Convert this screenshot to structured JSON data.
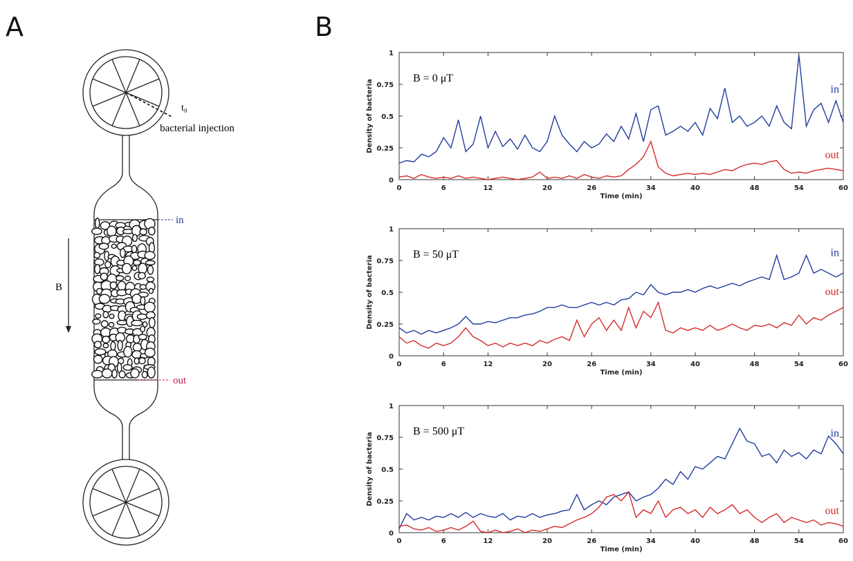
{
  "panels": [
    "A",
    "B"
  ],
  "diagram": {
    "injection_time": "t₀",
    "injection_label": "bacterial injection",
    "inlet_label": "in",
    "outlet_label": "out",
    "field_label": "B"
  },
  "chart_data": [
    {
      "type": "line",
      "annotation": "B = 0 μT",
      "xlabel": "Time (min)",
      "ylabel": "Density of bacteria",
      "xlim": [
        0,
        60
      ],
      "xticks": [
        0,
        6,
        12,
        20,
        26,
        34,
        40,
        48,
        54,
        60
      ],
      "ylim": [
        0,
        1
      ],
      "yticks": [
        0,
        0.25,
        0.5,
        0.75,
        1
      ],
      "x": [
        0,
        1,
        2,
        3,
        4,
        5,
        6,
        7,
        8,
        9,
        10,
        11,
        12,
        13,
        14,
        15,
        16,
        17,
        18,
        19,
        20,
        21,
        22,
        23,
        24,
        25,
        26,
        27,
        28,
        29,
        30,
        31,
        32,
        33,
        34,
        35,
        36,
        37,
        38,
        39,
        40,
        41,
        42,
        43,
        44,
        45,
        46,
        47,
        48,
        49,
        50,
        51,
        52,
        53,
        54,
        55,
        56,
        57,
        58,
        59,
        60
      ],
      "series": [
        {
          "name": "in",
          "color": "#1f3c9e",
          "values": [
            0.13,
            0.15,
            0.14,
            0.2,
            0.18,
            0.22,
            0.33,
            0.25,
            0.47,
            0.22,
            0.28,
            0.5,
            0.25,
            0.38,
            0.26,
            0.32,
            0.24,
            0.35,
            0.25,
            0.22,
            0.3,
            0.5,
            0.35,
            0.28,
            0.22,
            0.3,
            0.25,
            0.28,
            0.36,
            0.3,
            0.42,
            0.32,
            0.52,
            0.3,
            0.55,
            0.58,
            0.35,
            0.38,
            0.42,
            0.38,
            0.45,
            0.35,
            0.56,
            0.48,
            0.72,
            0.45,
            0.5,
            0.42,
            0.45,
            0.5,
            0.42,
            0.58,
            0.45,
            0.4,
            0.98,
            0.42,
            0.55,
            0.6,
            0.45,
            0.62,
            0.45
          ]
        },
        {
          "name": "out",
          "color": "#d42a2a",
          "values": [
            0.02,
            0.03,
            0.01,
            0.04,
            0.02,
            0.01,
            0.02,
            0.01,
            0.03,
            0.01,
            0.02,
            0.01,
            0,
            0.01,
            0.02,
            0.01,
            0,
            0.01,
            0.02,
            0.06,
            0.01,
            0.02,
            0.01,
            0.03,
            0.01,
            0.04,
            0.02,
            0.01,
            0.03,
            0.02,
            0.03,
            0.08,
            0.12,
            0.18,
            0.3,
            0.1,
            0.05,
            0.03,
            0.04,
            0.05,
            0.04,
            0.05,
            0.04,
            0.06,
            0.08,
            0.07,
            0.1,
            0.12,
            0.13,
            0.12,
            0.14,
            0.15,
            0.08,
            0.05,
            0.06,
            0.05,
            0.07,
            0.08,
            0.09,
            0.08,
            0.07
          ]
        }
      ]
    },
    {
      "type": "line",
      "annotation": "B = 50 μT",
      "xlabel": "Time (min)",
      "ylabel": "Density of bacteria",
      "xlim": [
        0,
        60
      ],
      "xticks": [
        0,
        6,
        12,
        20,
        26,
        34,
        40,
        48,
        54,
        60
      ],
      "ylim": [
        0,
        1
      ],
      "yticks": [
        0,
        0.25,
        0.5,
        0.75,
        1
      ],
      "x": [
        0,
        1,
        2,
        3,
        4,
        5,
        6,
        7,
        8,
        9,
        10,
        11,
        12,
        13,
        14,
        15,
        16,
        17,
        18,
        19,
        20,
        21,
        22,
        23,
        24,
        25,
        26,
        27,
        28,
        29,
        30,
        31,
        32,
        33,
        34,
        35,
        36,
        37,
        38,
        39,
        40,
        41,
        42,
        43,
        44,
        45,
        46,
        47,
        48,
        49,
        50,
        51,
        52,
        53,
        54,
        55,
        56,
        57,
        58,
        59,
        60
      ],
      "series": [
        {
          "name": "in",
          "color": "#1f3c9e",
          "values": [
            0.22,
            0.18,
            0.2,
            0.17,
            0.2,
            0.18,
            0.2,
            0.22,
            0.25,
            0.31,
            0.25,
            0.25,
            0.27,
            0.26,
            0.28,
            0.3,
            0.3,
            0.32,
            0.33,
            0.35,
            0.38,
            0.38,
            0.4,
            0.38,
            0.38,
            0.4,
            0.42,
            0.4,
            0.42,
            0.4,
            0.44,
            0.45,
            0.5,
            0.48,
            0.56,
            0.5,
            0.48,
            0.5,
            0.5,
            0.52,
            0.5,
            0.53,
            0.55,
            0.53,
            0.55,
            0.57,
            0.55,
            0.58,
            0.6,
            0.62,
            0.6,
            0.79,
            0.6,
            0.62,
            0.65,
            0.79,
            0.65,
            0.68,
            0.65,
            0.62,
            0.65
          ]
        },
        {
          "name": "out",
          "color": "#d42a2a",
          "values": [
            0.15,
            0.1,
            0.12,
            0.08,
            0.06,
            0.1,
            0.08,
            0.1,
            0.15,
            0.22,
            0.15,
            0.12,
            0.08,
            0.1,
            0.07,
            0.1,
            0.08,
            0.1,
            0.08,
            0.12,
            0.1,
            0.13,
            0.15,
            0.12,
            0.28,
            0.15,
            0.25,
            0.3,
            0.2,
            0.28,
            0.2,
            0.38,
            0.22,
            0.35,
            0.3,
            0.42,
            0.2,
            0.18,
            0.22,
            0.2,
            0.22,
            0.2,
            0.24,
            0.2,
            0.22,
            0.25,
            0.22,
            0.2,
            0.24,
            0.23,
            0.25,
            0.22,
            0.26,
            0.24,
            0.32,
            0.25,
            0.3,
            0.28,
            0.32,
            0.35,
            0.38
          ]
        }
      ]
    },
    {
      "type": "line",
      "annotation": "B = 500 μT",
      "xlabel": "Time (min)",
      "ylabel": "Density of bacteria",
      "xlim": [
        0,
        60
      ],
      "xticks": [
        0,
        6,
        12,
        20,
        26,
        34,
        40,
        48,
        54,
        60
      ],
      "ylim": [
        0,
        1
      ],
      "yticks": [
        0,
        0.25,
        0.5,
        0.75,
        1
      ],
      "x": [
        0,
        1,
        2,
        3,
        4,
        5,
        6,
        7,
        8,
        9,
        10,
        11,
        12,
        13,
        14,
        15,
        16,
        17,
        18,
        19,
        20,
        21,
        22,
        23,
        24,
        25,
        26,
        27,
        28,
        29,
        30,
        31,
        32,
        33,
        34,
        35,
        36,
        37,
        38,
        39,
        40,
        41,
        42,
        43,
        44,
        45,
        46,
        47,
        48,
        49,
        50,
        51,
        52,
        53,
        54,
        55,
        56,
        57,
        58,
        59,
        60
      ],
      "series": [
        {
          "name": "in",
          "color": "#1f3c9e",
          "values": [
            0.03,
            0.15,
            0.1,
            0.12,
            0.1,
            0.13,
            0.12,
            0.15,
            0.12,
            0.16,
            0.12,
            0.15,
            0.13,
            0.12,
            0.15,
            0.1,
            0.13,
            0.12,
            0.15,
            0.12,
            0.14,
            0.15,
            0.17,
            0.18,
            0.3,
            0.18,
            0.22,
            0.25,
            0.22,
            0.28,
            0.3,
            0.32,
            0.25,
            0.28,
            0.3,
            0.35,
            0.42,
            0.38,
            0.48,
            0.42,
            0.52,
            0.5,
            0.55,
            0.6,
            0.58,
            0.7,
            0.82,
            0.72,
            0.7,
            0.6,
            0.62,
            0.55,
            0.65,
            0.6,
            0.63,
            0.58,
            0.65,
            0.62,
            0.76,
            0.7,
            0.62
          ]
        },
        {
          "name": "out",
          "color": "#d42a2a",
          "values": [
            0.05,
            0.06,
            0.03,
            0.02,
            0.04,
            0.01,
            0.02,
            0.04,
            0.02,
            0.05,
            0.09,
            0.01,
            0,
            0.02,
            0,
            0.01,
            0.03,
            0,
            0.02,
            0.01,
            0.03,
            0.05,
            0.04,
            0.07,
            0.1,
            0.12,
            0.15,
            0.2,
            0.28,
            0.3,
            0.25,
            0.32,
            0.12,
            0.18,
            0.15,
            0.25,
            0.12,
            0.18,
            0.2,
            0.15,
            0.18,
            0.12,
            0.2,
            0.15,
            0.18,
            0.22,
            0.15,
            0.18,
            0.12,
            0.08,
            0.12,
            0.15,
            0.08,
            0.12,
            0.1,
            0.08,
            0.1,
            0.06,
            0.08,
            0.07,
            0.05
          ]
        }
      ]
    }
  ]
}
